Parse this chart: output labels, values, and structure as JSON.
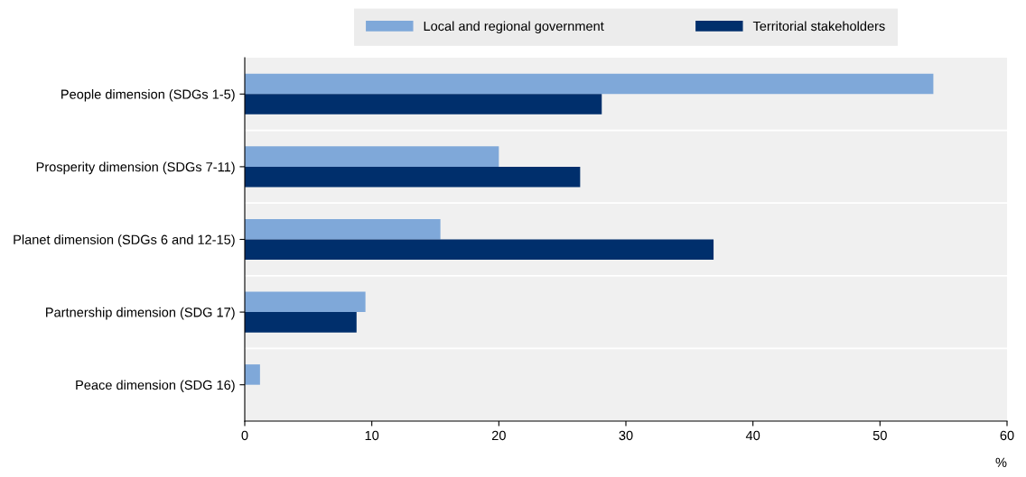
{
  "chart_data": {
    "type": "bar",
    "orientation": "horizontal",
    "xlabel": "%",
    "categories": [
      "People dimension (SDGs 1-5)",
      "Prosperity dimension (SDGs 7-11)",
      "Planet dimension (SDGs 6 and 12-15)",
      "Partnership dimension (SDG 17)",
      "Peace dimension (SDG 16)"
    ],
    "series": [
      {
        "name": "Local and regional government",
        "color": "#7fa8d9",
        "values": [
          54.2,
          20.0,
          15.4,
          9.5,
          1.2
        ]
      },
      {
        "name": "Territorial stakeholders",
        "color": "#002f6c",
        "values": [
          28.1,
          26.4,
          36.9,
          8.8,
          0
        ]
      }
    ],
    "xlim": [
      0,
      60
    ],
    "xticks": [
      0,
      10,
      20,
      30,
      40,
      50,
      60
    ],
    "grid": false,
    "legend": "top"
  }
}
